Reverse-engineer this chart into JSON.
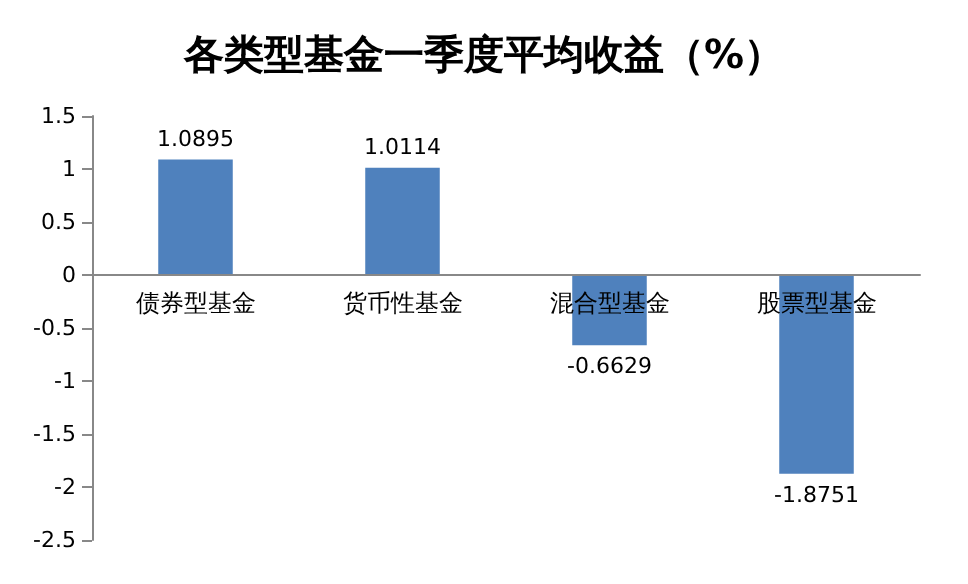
{
  "chart_data": {
    "type": "bar",
    "title": "各类型基金一季度平均收益（%）",
    "categories": [
      "债券型基金",
      "货币性基金",
      "混合型基金",
      "股票型基金"
    ],
    "values": [
      1.0895,
      1.0114,
      -0.6629,
      -1.8751
    ],
    "color": "#4f81bd",
    "ylim": [
      -2.5,
      1.5
    ],
    "yticks": [
      -2.5,
      -2,
      -1.5,
      -1,
      -0.5,
      0,
      0.5,
      1,
      1.5
    ],
    "data_labels": true
  }
}
